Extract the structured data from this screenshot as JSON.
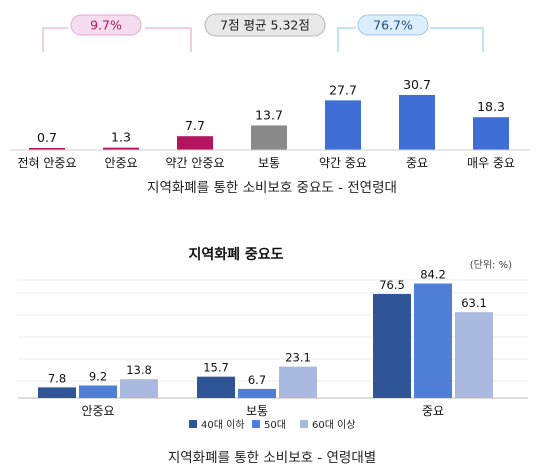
{
  "chart_data": [
    {
      "type": "bar",
      "title": "지역화폐를 통한 소비보호 중요도 - 전연령대",
      "categories": [
        "전혀 안중요",
        "안중요",
        "약간 안중요",
        "보통",
        "약간 중요",
        "중요",
        "매우 중요"
      ],
      "values": [
        0.7,
        1.3,
        7.7,
        13.7,
        27.7,
        30.7,
        18.3
      ],
      "value_labels": [
        "0.7",
        "1.3",
        "7.7",
        "13.7",
        "27.7",
        "30.7",
        "18.3"
      ],
      "bar_colors": [
        "#b3135f",
        "#b3135f",
        "#b3135f",
        "#8a8a8a",
        "#3f6fd4",
        "#3f6fd4",
        "#3f6fd4"
      ],
      "annotations": {
        "negative_group": "9.7%",
        "average": "7점 평균 5.32점",
        "positive_group": "76.7%"
      },
      "grid": false,
      "ylim": [
        0,
        35
      ]
    },
    {
      "type": "bar",
      "title": "지역화폐 중요도",
      "unit": "(단위: %)",
      "caption": "지역화폐를 통한 소비보호 - 연령대별",
      "categories": [
        "안중요",
        "보통",
        "중요"
      ],
      "series": [
        {
          "name": "40대 이하",
          "color": "#2f5597",
          "values": [
            7.8,
            15.7,
            76.5
          ],
          "value_labels": [
            "7.8",
            "15.7",
            "76.5"
          ]
        },
        {
          "name": "50대",
          "color": "#4f7fd6",
          "values": [
            9.2,
            6.7,
            84.2
          ],
          "value_labels": [
            "9.2",
            "6.7",
            "84.2"
          ]
        },
        {
          "name": "60대 이상",
          "color": "#a9b9e0",
          "values": [
            13.8,
            23.1,
            63.1
          ],
          "value_labels": [
            "13.8",
            "23.1",
            "63.1"
          ]
        }
      ],
      "ylim": [
        0,
        100
      ],
      "grid": true,
      "legend": "bottom"
    }
  ]
}
